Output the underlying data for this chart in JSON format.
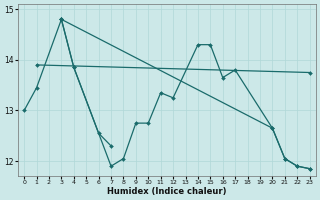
{
  "xlabel": "Humidex (Indice chaleur)",
  "xlim": [
    -0.5,
    23.5
  ],
  "ylim": [
    11.7,
    15.1
  ],
  "yticks": [
    12,
    13,
    14,
    15
  ],
  "xticks": [
    0,
    1,
    2,
    3,
    4,
    5,
    6,
    7,
    8,
    9,
    10,
    11,
    12,
    13,
    14,
    15,
    16,
    17,
    18,
    19,
    20,
    21,
    22,
    23
  ],
  "bg_color": "#cce8e8",
  "line_color": "#1a6b6b",
  "line1": {
    "x": [
      0,
      1,
      3,
      4,
      7,
      8,
      9,
      10,
      11,
      12,
      14,
      15,
      16,
      17,
      20,
      21,
      22,
      23
    ],
    "y": [
      13.0,
      13.45,
      14.8,
      13.85,
      11.9,
      12.05,
      12.75,
      12.75,
      13.35,
      13.25,
      14.3,
      14.3,
      13.65,
      13.8,
      12.65,
      12.05,
      11.9,
      11.85
    ]
  },
  "line2": {
    "comment": "short segment: 3~14.8 down to 6~12.55, 7~12.3",
    "x": [
      3,
      4,
      6,
      7
    ],
    "y": [
      14.8,
      13.85,
      12.55,
      12.3
    ]
  },
  "line3": {
    "x": [
      1,
      23
    ],
    "y": [
      13.9,
      13.75
    ]
  },
  "line4": {
    "x": [
      3,
      20,
      21,
      22,
      23
    ],
    "y": [
      14.8,
      12.65,
      12.05,
      11.9,
      11.85
    ]
  }
}
